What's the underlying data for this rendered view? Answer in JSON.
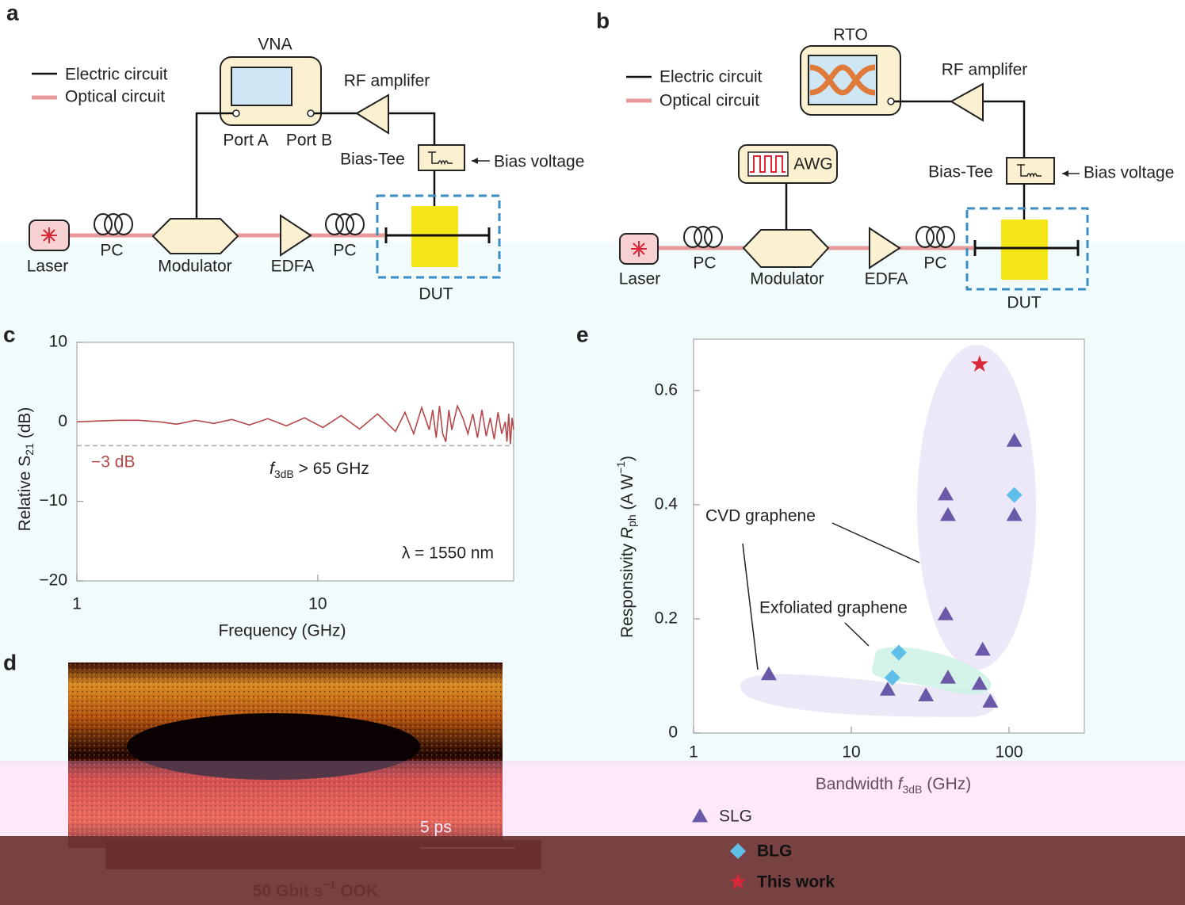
{
  "panels": {
    "a": {
      "label": "a",
      "legend": [
        "Electric circuit",
        "Optical circuit"
      ],
      "vna": "VNA",
      "port_a": "Port A",
      "port_b": "Port B",
      "amplifier": "RF amplifer",
      "bias_tee": "Bias-Tee",
      "bias_voltage": "Bias voltage",
      "laser": "Laser",
      "pc1": "PC",
      "modulator": "Modulator",
      "edfa": "EDFA",
      "pc2": "PC",
      "dut": "DUT"
    },
    "b": {
      "label": "b",
      "legend": [
        "Electric circuit",
        "Optical circuit"
      ],
      "rto": "RTO",
      "awg": "AWG",
      "amplifier": "RF amplifer",
      "bias_tee": "Bias-Tee",
      "bias_voltage": "Bias voltage",
      "laser": "Laser",
      "pc1": "PC",
      "modulator": "Modulator",
      "edfa": "EDFA",
      "pc2": "PC",
      "dut": "DUT"
    },
    "d": {
      "label": "d",
      "scale": "5 ps",
      "caption": {
        "main": "50 Gbit s",
        "sup": "−1",
        "tail": " OOK"
      }
    }
  },
  "chart_data": [
    {
      "type": "line",
      "panel_label": "c",
      "xlabel": "Frequency (GHz)",
      "ylabel": {
        "main": "Relative S",
        "sub": "21",
        "unit": " (dB)"
      },
      "log_x": true,
      "xlim": [
        1,
        65
      ],
      "xticks": [
        1,
        10
      ],
      "ylim": [
        -20,
        10
      ],
      "yticks": [
        10,
        0,
        {
          "value": -10,
          "label": "−10"
        },
        {
          "value": -20,
          "label": "−20"
        }
      ],
      "reference_line": -3,
      "reference_label": "−3 dB",
      "annotations": [
        {
          "var": "f",
          "sub": "3dB",
          "text": " > 65 GHz"
        },
        {
          "text": "λ = 1550 nm"
        }
      ],
      "series": [
        {
          "color": "#b5484a",
          "x": [
            1,
            1.2,
            1.5,
            1.8,
            2.2,
            2.6,
            3.1,
            3.7,
            4.4,
            5.2,
            6.2,
            7.4,
            8.8,
            10.5,
            12.5,
            14.9,
            17.7,
            21,
            23,
            25,
            27,
            29,
            30,
            31,
            32,
            33,
            34,
            35,
            36,
            38,
            40,
            42,
            44,
            46,
            48,
            50,
            52,
            54,
            56,
            58,
            60,
            61,
            62,
            63,
            64,
            65
          ],
          "values": [
            0,
            0.1,
            0.2,
            0.2,
            0,
            -0.3,
            0.2,
            -0.2,
            0.3,
            -0.4,
            0.4,
            -0.5,
            0.5,
            -0.7,
            0.8,
            -0.9,
            1,
            -1.2,
            1.2,
            -1.5,
            1.8,
            -1,
            1.5,
            -2,
            2,
            -1.5,
            -2.5,
            1.5,
            -1,
            2,
            0.5,
            -1.5,
            1,
            -2,
            1.5,
            -1.8,
            0.5,
            -2.2,
            1.2,
            -1.5,
            0,
            -2.5,
            1,
            -2.8,
            0.5,
            -1
          ]
        }
      ]
    },
    {
      "type": "scatter",
      "panel_label": "e",
      "xlabel": {
        "main": "Bandwidth ",
        "var": "f",
        "sub": "3dB",
        "unit": " (GHz)"
      },
      "ylabel": {
        "main": "Responsivity ",
        "var": "R",
        "sub": "ph",
        "unit": " (A W",
        "sup": "−1",
        "end": ")"
      },
      "log_x": true,
      "xlim": [
        1,
        300
      ],
      "xticks": [
        1,
        10,
        100
      ],
      "ylim": [
        0,
        0.69
      ],
      "yticks": [
        0,
        0.2,
        0.4,
        0.6
      ],
      "annotations": [
        "CVD graphene",
        "Exfoliated graphene"
      ],
      "series": [
        {
          "name": "SLG",
          "marker": "triangle",
          "color": "#6a58a8",
          "x": [
            3,
            17,
            29.7,
            39.6,
            41,
            39.6,
            41,
            68,
            65,
            76,
            108,
            108
          ],
          "values": [
            0.103,
            0.076,
            0.066,
            0.418,
            0.382,
            0.208,
            0.097,
            0.146,
            0.086,
            0.055,
            0.512,
            0.382
          ]
        },
        {
          "name": "BLG",
          "marker": "diamond",
          "color": "#5fbfe8",
          "x": [
            20,
            18.2,
            108
          ],
          "values": [
            0.141,
            0.097,
            0.417
          ]
        },
        {
          "name": "This work",
          "marker": "star",
          "color": "#d8283a",
          "x": [
            65
          ],
          "values": [
            0.646
          ]
        }
      ]
    }
  ]
}
